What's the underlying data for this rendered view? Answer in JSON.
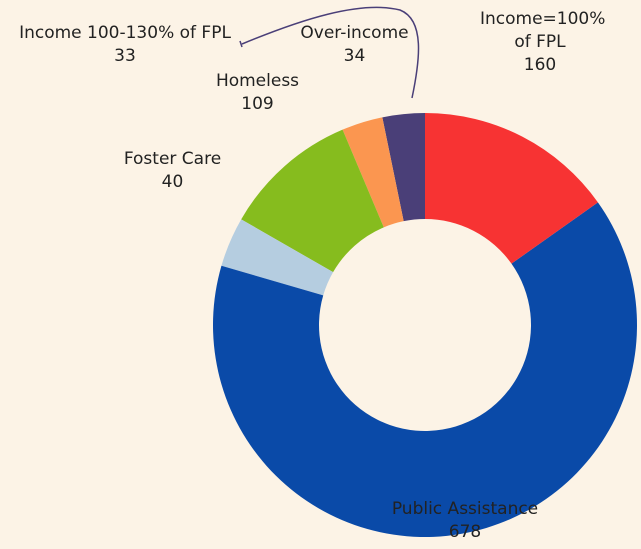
{
  "chart_data": {
    "type": "donut",
    "categories": [
      "Income=100% of FPL",
      "Public Assistance",
      "Foster Care",
      "Homeless",
      "Income 100-130% of FPL",
      "Over-income"
    ],
    "values": [
      160,
      678,
      40,
      109,
      33,
      34
    ],
    "colors": [
      "#f73333",
      "#0a4aa8",
      "#b5cde0",
      "#86bc1e",
      "#fb9650",
      "#4a3f78"
    ]
  }
}
